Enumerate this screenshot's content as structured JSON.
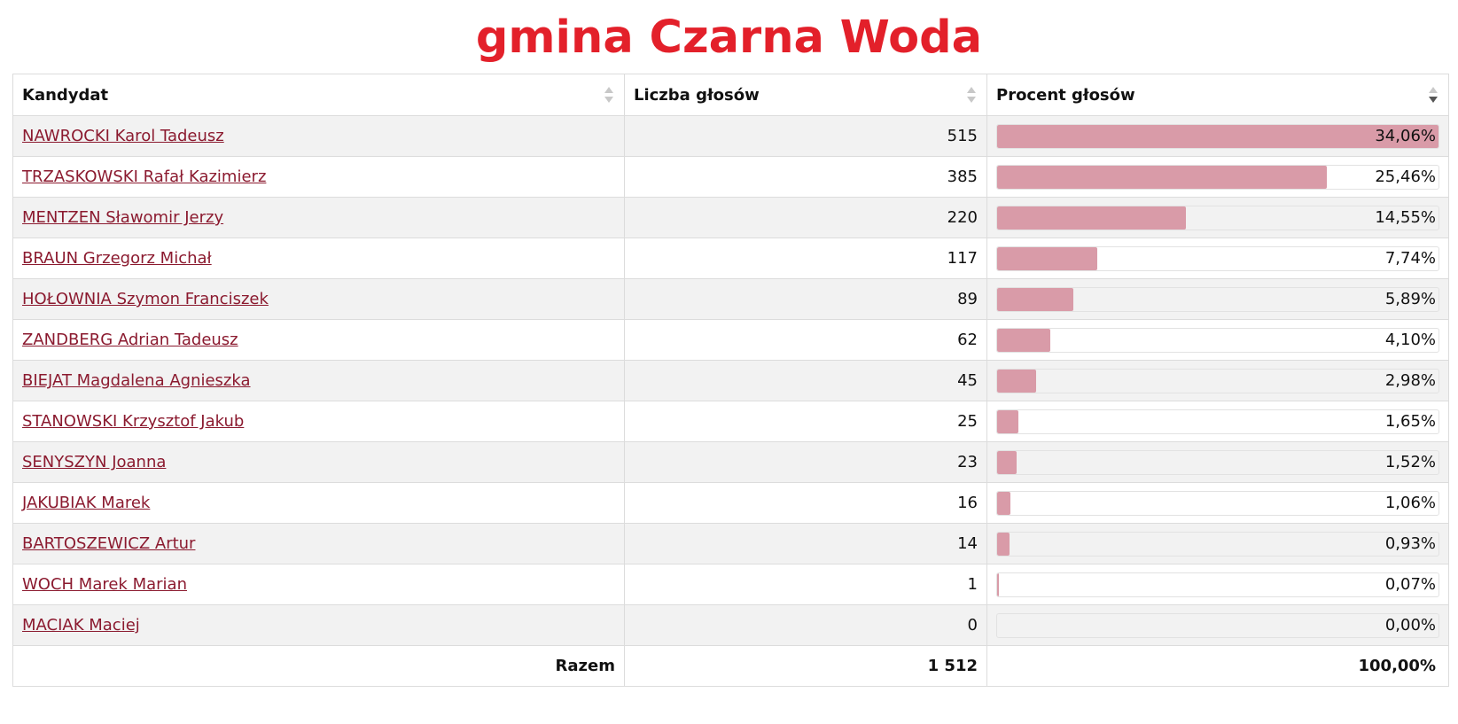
{
  "title": "gmina Czarna Woda",
  "table": {
    "headers": {
      "candidate": "Kandydat",
      "votes": "Liczba głosów",
      "percent": "Procent głosów"
    },
    "sort": {
      "column": "percent",
      "direction": "desc"
    },
    "rows": [
      {
        "name": "NAWROCKI Karol Tadeusz",
        "votes": "515",
        "percent": "34,06%",
        "share": 1.0
      },
      {
        "name": "TRZASKOWSKI Rafał Kazimierz",
        "votes": "385",
        "percent": "25,46%",
        "share": 0.7475
      },
      {
        "name": "MENTZEN Sławomir Jerzy",
        "votes": "220",
        "percent": "14,55%",
        "share": 0.4272
      },
      {
        "name": "BRAUN Grzegorz Michał",
        "votes": "117",
        "percent": "7,74%",
        "share": 0.2272
      },
      {
        "name": "HOŁOWNIA Szymon Franciszek",
        "votes": "89",
        "percent": "5,89%",
        "share": 0.1729
      },
      {
        "name": "ZANDBERG Adrian Tadeusz",
        "votes": "62",
        "percent": "4,10%",
        "share": 0.1204
      },
      {
        "name": "BIEJAT Magdalena Agnieszka",
        "votes": "45",
        "percent": "2,98%",
        "share": 0.0875
      },
      {
        "name": "STANOWSKI Krzysztof Jakub",
        "votes": "25",
        "percent": "1,65%",
        "share": 0.0484
      },
      {
        "name": "SENYSZYN Joanna",
        "votes": "23",
        "percent": "1,52%",
        "share": 0.0446
      },
      {
        "name": "JAKUBIAK Marek",
        "votes": "16",
        "percent": "1,06%",
        "share": 0.0311
      },
      {
        "name": "BARTOSZEWICZ Artur",
        "votes": "14",
        "percent": "0,93%",
        "share": 0.0273
      },
      {
        "name": "WOCH Marek Marian",
        "votes": "1",
        "percent": "0,07%",
        "share": 0.0021
      },
      {
        "name": "MACIAK Maciej",
        "votes": "0",
        "percent": "0,00%",
        "share": 0.0
      }
    ],
    "footer": {
      "label": "Razem",
      "votes": "1 512",
      "percent": "100,00%"
    }
  },
  "colors": {
    "title": "#e3202a",
    "link": "#8b1a2f",
    "bar": "#d99ba8",
    "row_alt": "#f2f2f2"
  }
}
